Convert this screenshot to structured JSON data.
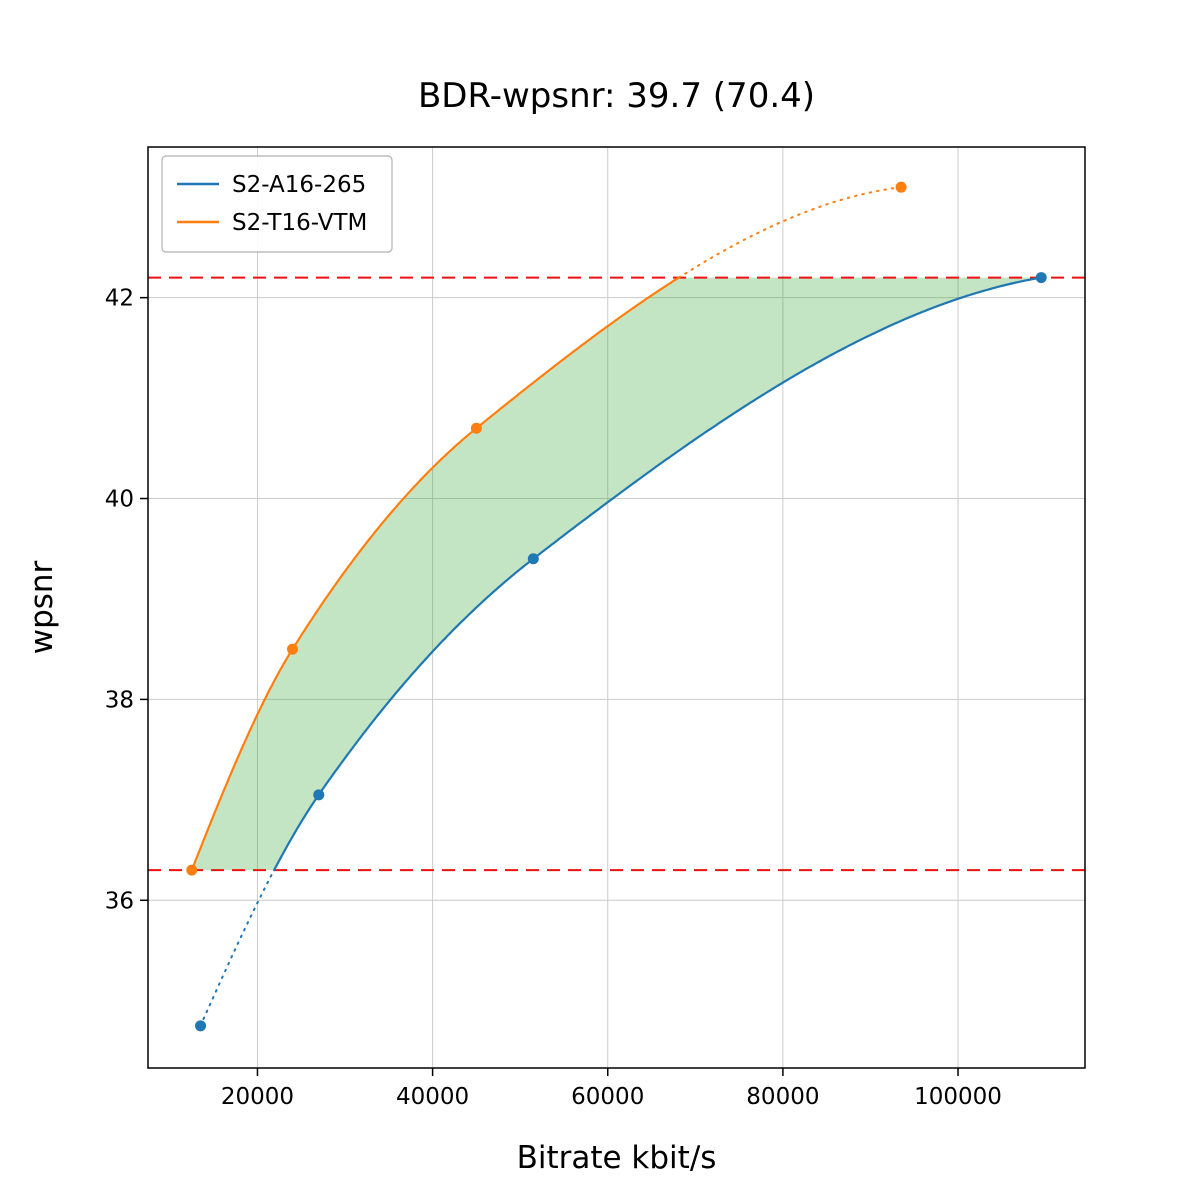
{
  "chart_data": {
    "type": "line",
    "title": "BDR-wpsnr: 39.7 (70.4)",
    "xlabel": "Bitrate kbit/s",
    "ylabel": "wpsnr",
    "xlim": [
      7500,
      114500
    ],
    "ylim": [
      34.33,
      43.5
    ],
    "x_ticks": [
      20000,
      40000,
      60000,
      80000,
      100000
    ],
    "y_ticks": [
      36,
      38,
      40,
      42
    ],
    "grid": true,
    "grid_color": "#cccccc",
    "legend_position": "upper-left",
    "series": [
      {
        "name": "S2-A16-265",
        "color": "#1f77b4",
        "x": [
          13500,
          27000,
          51500,
          109500
        ],
        "y": [
          34.75,
          37.05,
          39.4,
          42.2
        ]
      },
      {
        "name": "S2-T16-VTM",
        "color": "#ff7f0e",
        "x": [
          12500,
          24000,
          45000,
          93500
        ],
        "y": [
          36.3,
          38.5,
          40.7,
          43.1
        ]
      }
    ],
    "hlines": [
      {
        "y": 36.3,
        "color": "#ee1111",
        "style": "dashed"
      },
      {
        "y": 42.2,
        "color": "#ee1111",
        "style": "dashed"
      }
    ],
    "shade": {
      "upper_series": "S2-T16-VTM",
      "lower_series": "S2-A16-265",
      "color": "#2ca02c",
      "opacity": 0.28,
      "y_range": [
        36.3,
        42.2
      ]
    }
  }
}
